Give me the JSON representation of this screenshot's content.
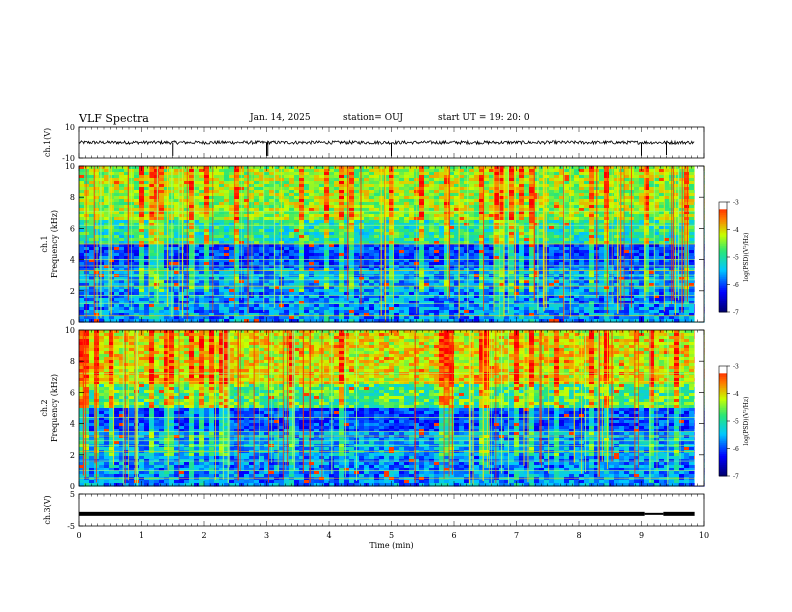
{
  "header": {
    "title": "VLF Spectra",
    "date": "Jan. 14, 2025",
    "station": "station= OUJ",
    "start": "start  UT =   19: 20: 0"
  },
  "chart_data": [
    {
      "type": "line",
      "name": "ch1-waveform",
      "ylabel": "ch.1(V)",
      "ylim": [
        -10,
        10
      ],
      "yticks": [
        "10",
        "-10"
      ],
      "baseline": 0,
      "spikes_min": [
        1.5,
        3.0,
        3.02,
        5.0,
        9.0,
        9.4
      ],
      "xlim": [
        0,
        10
      ]
    },
    {
      "type": "heatmap",
      "name": "ch1-spectrogram",
      "ylabel": "Frequency  (kHz)",
      "channel_label": "ch.1",
      "ylim": [
        0,
        10
      ],
      "yticks": [
        "0",
        "2",
        "4",
        "6",
        "8",
        "10"
      ],
      "xlim": [
        0,
        10
      ],
      "colorbar": {
        "label": "log(PSD)(V²/Hz)",
        "ticks": [
          "-3",
          "-4",
          "-5",
          "-6",
          "-7"
        ],
        "range": [
          -7,
          -3
        ]
      }
    },
    {
      "type": "heatmap",
      "name": "ch2-spectrogram",
      "ylabel": "Frequency  (kHz)",
      "channel_label": "ch.2",
      "ylim": [
        0,
        10
      ],
      "yticks": [
        "0",
        "2",
        "4",
        "6",
        "8",
        "10"
      ],
      "xlim": [
        0,
        10
      ],
      "colorbar": {
        "label": "log(PSD)(V²/Hz)",
        "ticks": [
          "-3",
          "-4",
          "-5",
          "-6",
          "-7"
        ],
        "range": [
          -7,
          -3
        ]
      }
    },
    {
      "type": "line",
      "name": "ch3-waveform",
      "ylabel": "ch.3(V)",
      "ylim": [
        -5,
        5
      ],
      "yticks": [
        "5",
        "-5"
      ],
      "baseline": -1.2,
      "xlim": [
        0,
        10
      ],
      "xlabel": "Time  (min)",
      "xticks": [
        "0",
        "1",
        "2",
        "3",
        "4",
        "5",
        "6",
        "7",
        "8",
        "9",
        "10"
      ]
    }
  ]
}
